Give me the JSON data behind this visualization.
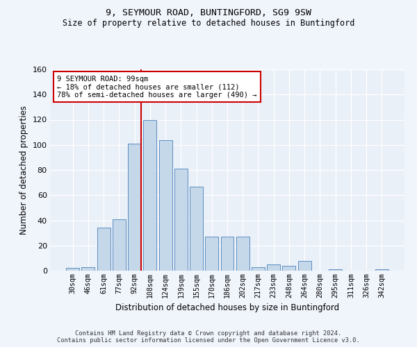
{
  "title_line1": "9, SEYMOUR ROAD, BUNTINGFORD, SG9 9SW",
  "title_line2": "Size of property relative to detached houses in Buntingford",
  "xlabel": "Distribution of detached houses by size in Buntingford",
  "ylabel": "Number of detached properties",
  "categories": [
    "30sqm",
    "46sqm",
    "61sqm",
    "77sqm",
    "92sqm",
    "108sqm",
    "124sqm",
    "139sqm",
    "155sqm",
    "170sqm",
    "186sqm",
    "202sqm",
    "217sqm",
    "233sqm",
    "248sqm",
    "264sqm",
    "280sqm",
    "295sqm",
    "311sqm",
    "326sqm",
    "342sqm"
  ],
  "values": [
    2,
    3,
    34,
    41,
    101,
    120,
    104,
    81,
    67,
    27,
    27,
    27,
    3,
    5,
    4,
    8,
    0,
    1,
    0,
    0,
    1
  ],
  "bar_color": "#c5d8ea",
  "bar_edge_color": "#5b8dc0",
  "background_color": "#eaf0f8",
  "grid_color": "#ffffff",
  "annotation_title": "9 SEYMOUR ROAD: 99sqm",
  "annotation_line2": "← 18% of detached houses are smaller (112)",
  "annotation_line3": "78% of semi-detached houses are larger (490) →",
  "vline_color": "#cc0000",
  "annotation_box_color": "#ffffff",
  "annotation_box_edge": "#cc0000",
  "ylim": [
    0,
    160
  ],
  "yticks": [
    0,
    20,
    40,
    60,
    80,
    100,
    120,
    140,
    160
  ],
  "vline_x": 4.43,
  "footer_line1": "Contains HM Land Registry data © Crown copyright and database right 2024.",
  "footer_line2": "Contains public sector information licensed under the Open Government Licence v3.0."
}
